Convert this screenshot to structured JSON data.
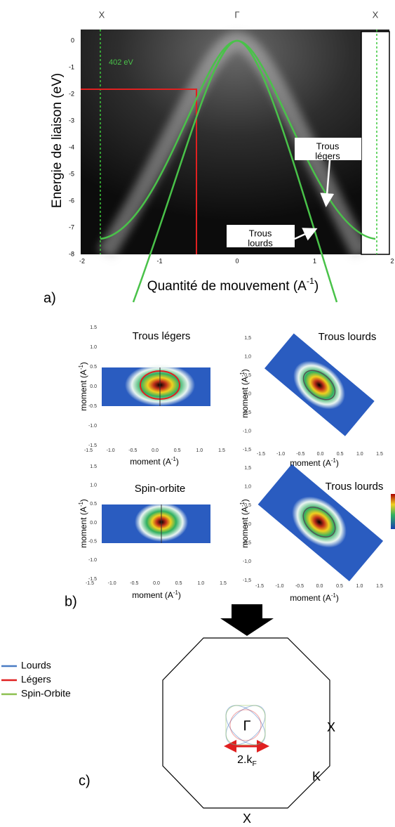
{
  "panel_a": {
    "label": "a)",
    "top_labels": [
      "X",
      "Γ",
      "X"
    ],
    "y_axis_label": "Energie de liaison (eV)",
    "y_ticks": [
      "0",
      "-1",
      "-2",
      "-3",
      "-4",
      "-5",
      "-6",
      "-7",
      "-8"
    ],
    "x_ticks": [
      "-2",
      "-1",
      "0",
      "1",
      "2"
    ],
    "x_axis_label": {
      "text": "Quantité de mouvement (A",
      "sup": "-1",
      "close": ")"
    },
    "energy_note": "402 eV",
    "annotations": [
      {
        "lines": [
          "Trous",
          "légers"
        ]
      },
      {
        "lines": [
          "Trous",
          "lourds"
        ]
      }
    ]
  },
  "panel_b": {
    "label": "b)",
    "plots": [
      {
        "title": "Trous légers",
        "y_ticks": [
          "1.5",
          "1.0",
          "0.5",
          "0.0",
          "-0.5",
          "-1.0",
          "-1.5"
        ],
        "x_ticks": [
          "-1.5",
          "-1.0",
          "-0.5",
          "0.0",
          "0.5",
          "1.0",
          "1.5"
        ],
        "y_axis_label": {
          "text": "moment (A",
          "sup": "-1",
          "close": ")"
        },
        "x_axis_label": {
          "text": "moment (A",
          "sup": "-1",
          "close": ")"
        }
      },
      {
        "title": "Trous lourds",
        "y_ticks": [
          "1,5",
          "1,0",
          "0,5",
          "0,0",
          "-0,5",
          "-1,0",
          "-1,5"
        ],
        "x_ticks": [
          "-1.5",
          "-1.0",
          "-0.5",
          "0.0",
          "0.5",
          "1.0",
          "1.5"
        ],
        "y_axis_label": {
          "text": "moment (A",
          "sup": "-1",
          "close": ")"
        },
        "x_axis_label": {
          "text": "moment (A",
          "sup": "-1",
          "close": ")"
        }
      },
      {
        "title": "Spin-orbite",
        "y_ticks": [
          "1.5",
          "1.0",
          "0.5",
          "0.0",
          "-0.5",
          "-1.0",
          "-1.5"
        ],
        "x_ticks": [
          "-1.5",
          "-1.0",
          "-0.5",
          "0.0",
          "0.5",
          "1.0",
          "1.5"
        ],
        "y_axis_label": {
          "text": "moment (A",
          "sup": "-1",
          "close": ")"
        },
        "x_axis_label": {
          "text": "moment (A",
          "sup": "-1",
          "close": ")"
        }
      },
      {
        "title": "Trous lourds",
        "y_ticks": [
          "1,5",
          "1,0",
          "0,5",
          "0,0",
          "-0,5",
          "-1,0",
          "-1,5"
        ],
        "x_ticks": [
          "-1.5",
          "-1.0",
          "-0.5",
          "0.0",
          "0.5",
          "1.0",
          "1.5"
        ],
        "y_axis_label": {
          "text": "moment (A",
          "sup": "-1",
          "close": ")"
        },
        "x_axis_label": {
          "text": "moment (A",
          "sup": "-1",
          "close": ")"
        }
      }
    ]
  },
  "panel_c": {
    "label": "c)",
    "legend": [
      {
        "name": "Lourds",
        "color": "#4a7cc4"
      },
      {
        "name": "Légers",
        "color": "#e02020"
      },
      {
        "name": "Spin-Orbite",
        "color": "#8dc050"
      }
    ],
    "points": {
      "gamma": "Γ",
      "x_right": "X",
      "k": "K",
      "x_bottom": "X"
    },
    "width_label": {
      "text": "2.k",
      "sub": "F"
    }
  }
}
